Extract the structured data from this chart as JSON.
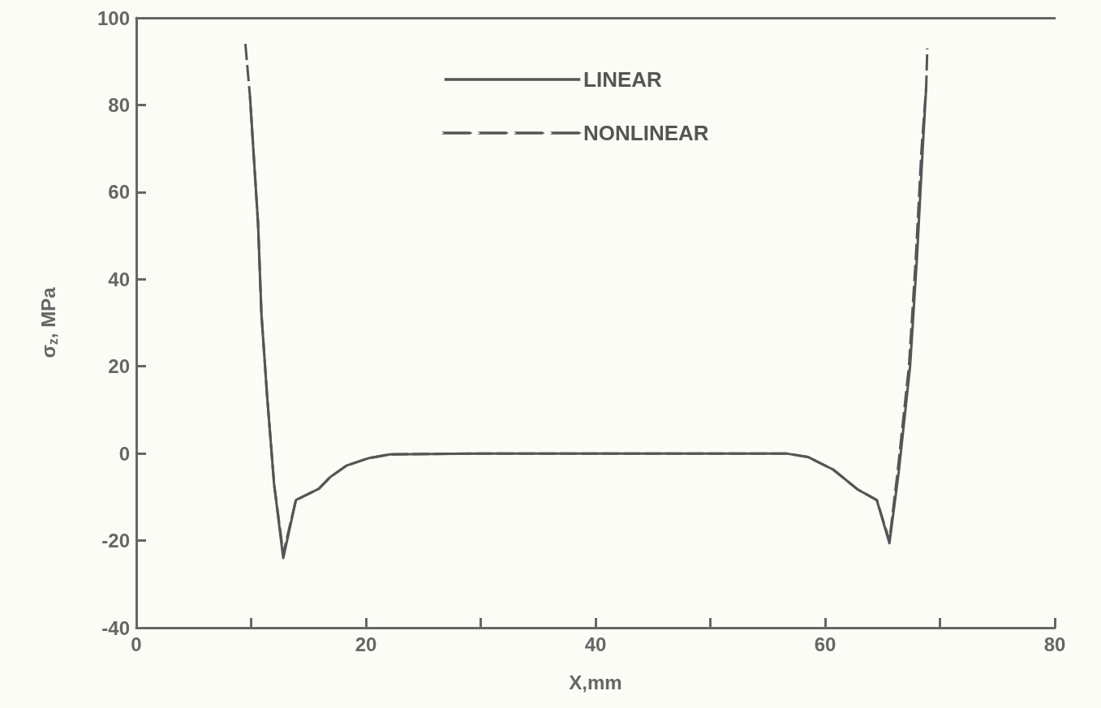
{
  "chart_data": {
    "type": "line",
    "xlabel": "X,mm",
    "ylabel": "σ$_{z}$, MPa",
    "xlim": [
      0,
      80
    ],
    "ylim": [
      -40,
      100
    ],
    "xticks": [
      0,
      {
        "value": 10,
        "label": null
      },
      20,
      {
        "value": 30,
        "label": null
      },
      40,
      {
        "value": 50,
        "label": null
      },
      60,
      {
        "value": 70,
        "label": null
      },
      80
    ],
    "yticks": [
      -40,
      -20,
      0,
      20,
      40,
      60,
      80,
      100
    ],
    "grid": false,
    "legend": "top",
    "marker": "none",
    "series": [
      {
        "name": "LINEAR",
        "color": "#555555",
        "line_style": "solid",
        "x": [
          9.9,
          10.6,
          10.9,
          11.4,
          12.0,
          12.8,
          13.9,
          15.9,
          16.9,
          18.3,
          20.2,
          22.1,
          30,
          40,
          50,
          56.6,
          58.5,
          60.7,
          62.8,
          64.5,
          65.6,
          66.4,
          67.4,
          68.0,
          68.5,
          68.8
        ],
        "values": [
          82,
          53,
          32,
          13,
          -7,
          -24,
          -10.7,
          -8.1,
          -5.4,
          -2.8,
          -1.1,
          -0.2,
          0,
          0,
          0,
          0,
          -0.8,
          -3.7,
          -8.2,
          -10.7,
          -20.6,
          -4.5,
          20,
          45,
          70,
          84
        ]
      },
      {
        "name": "NONLINEAR",
        "color": "#555555",
        "line_style": "dashed",
        "x": [
          9.5,
          9.9,
          10.6,
          10.9,
          11.4,
          12.0,
          12.8,
          13.9,
          15.9,
          16.9,
          18.3,
          20.2,
          22.1,
          30,
          40,
          50,
          56.6,
          58.5,
          60.7,
          62.8,
          64.5,
          65.6,
          66.3,
          67.3,
          67.9,
          68.4,
          68.8,
          68.9
        ],
        "values": [
          94,
          82,
          53,
          32,
          13,
          -7,
          -23,
          -10.7,
          -8.1,
          -5.4,
          -2.8,
          -1.1,
          -0.2,
          0,
          0,
          0,
          0,
          -0.8,
          -3.7,
          -8.2,
          -10.7,
          -20,
          -4.5,
          20,
          45,
          70,
          84,
          93
        ]
      }
    ]
  }
}
